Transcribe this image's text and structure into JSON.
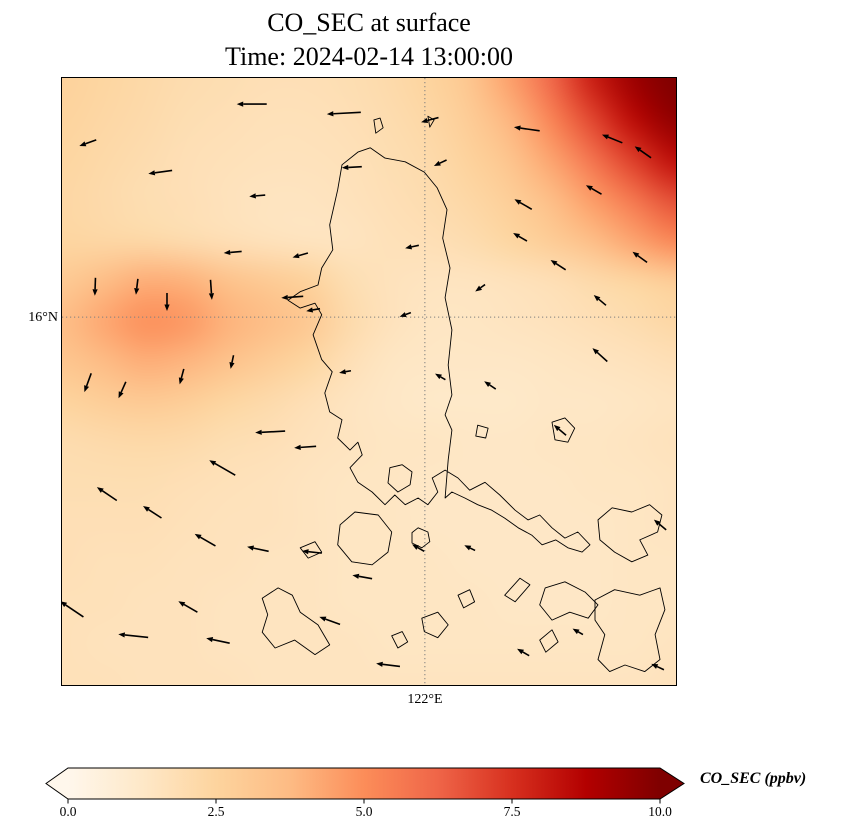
{
  "title": "CO_SEC at surface",
  "subtitle": "Time: 2024-02-14 13:00:00",
  "chart_data": {
    "type": "heatmap",
    "variable": "CO_SEC",
    "level": "surface",
    "time": "2024-02-14 13:00:00",
    "units": "ppbv",
    "title": "CO_SEC at surface",
    "subtitle": "Time: 2024-02-14 13:00:00",
    "colorbar": {
      "label": "CO_SEC (ppbv)",
      "ticks": [
        0.0,
        2.5,
        5.0,
        7.5,
        10.0
      ],
      "tick_labels": [
        "0.0",
        "2.5",
        "5.0",
        "7.5",
        "10.0"
      ],
      "range": [
        0,
        10
      ],
      "extend": "both",
      "colormap": [
        "#fff7ec",
        "#fee8c8",
        "#fdd49e",
        "#fdbb84",
        "#fc8d59",
        "#ef6548",
        "#d7301f",
        "#b30000",
        "#7f0000"
      ]
    },
    "gridlines": {
      "lat_label": "16°N",
      "lon_label": "122°E",
      "lat_y_frac": 0.394,
      "lon_x_frac": 0.591,
      "color": "#7f7f7f"
    },
    "heat_grid": {
      "nx": 16,
      "ny": 16,
      "vmin": 0,
      "vmax": 10,
      "values": [
        [
          2.6,
          2.4,
          2.2,
          2.0,
          1.9,
          1.8,
          1.8,
          1.9,
          2.1,
          2.5,
          3.2,
          4.5,
          6.2,
          8.0,
          9.3,
          10.0
        ],
        [
          2.5,
          2.3,
          2.1,
          1.9,
          1.8,
          1.7,
          1.7,
          1.8,
          2.0,
          2.3,
          2.9,
          3.9,
          5.3,
          7.0,
          8.5,
          9.6
        ],
        [
          2.4,
          2.2,
          2.0,
          1.8,
          1.7,
          1.6,
          1.6,
          1.7,
          1.9,
          2.1,
          2.6,
          3.3,
          4.4,
          5.8,
          7.2,
          8.4
        ],
        [
          2.3,
          2.1,
          1.9,
          1.8,
          1.6,
          1.5,
          1.5,
          1.6,
          1.8,
          2.0,
          2.3,
          2.8,
          3.6,
          4.6,
          5.7,
          6.8
        ],
        [
          2.4,
          2.3,
          2.2,
          2.0,
          1.8,
          1.6,
          1.5,
          1.5,
          1.7,
          1.8,
          2.0,
          2.4,
          2.9,
          3.6,
          4.4,
          5.2
        ],
        [
          3.0,
          3.6,
          4.1,
          4.0,
          3.4,
          3.0,
          2.6,
          1.9,
          1.6,
          1.5,
          1.5,
          1.6,
          1.8,
          2.1,
          2.4,
          2.8
        ],
        [
          3.6,
          4.3,
          4.9,
          4.7,
          4.0,
          3.6,
          3.1,
          2.1,
          1.6,
          1.4,
          1.4,
          1.5,
          1.6,
          1.8,
          2.0,
          2.3
        ],
        [
          3.2,
          3.7,
          4.1,
          3.9,
          3.4,
          2.9,
          2.4,
          1.8,
          1.4,
          1.3,
          1.3,
          1.3,
          1.4,
          1.5,
          1.6,
          1.8
        ],
        [
          2.5,
          2.8,
          3.0,
          2.8,
          2.4,
          2.1,
          1.8,
          1.5,
          1.3,
          1.2,
          1.2,
          1.2,
          1.3,
          1.3,
          1.4,
          1.5
        ],
        [
          2.0,
          2.1,
          2.2,
          2.1,
          1.9,
          1.8,
          1.6,
          1.5,
          1.4,
          1.4,
          1.3,
          1.3,
          1.4,
          1.4,
          1.5,
          1.6
        ],
        [
          1.9,
          1.9,
          1.9,
          1.8,
          1.7,
          1.6,
          1.5,
          1.4,
          1.4,
          1.3,
          1.3,
          1.3,
          1.3,
          1.4,
          1.4,
          1.5
        ],
        [
          1.8,
          1.8,
          1.8,
          1.7,
          1.6,
          1.6,
          1.5,
          1.4,
          1.4,
          1.3,
          1.3,
          1.3,
          1.3,
          1.3,
          1.4,
          1.5
        ],
        [
          1.8,
          1.7,
          1.7,
          1.6,
          1.6,
          1.5,
          1.5,
          1.4,
          1.4,
          1.4,
          1.3,
          1.3,
          1.3,
          1.3,
          1.4,
          1.4
        ],
        [
          1.7,
          1.7,
          1.6,
          1.6,
          1.5,
          1.5,
          1.5,
          1.4,
          1.4,
          1.4,
          1.4,
          1.3,
          1.3,
          1.3,
          1.4,
          1.4
        ],
        [
          1.7,
          1.6,
          1.6,
          1.6,
          1.5,
          1.5,
          1.5,
          1.5,
          1.4,
          1.4,
          1.4,
          1.4,
          1.4,
          1.4,
          1.4,
          1.5
        ],
        [
          1.7,
          1.7,
          1.6,
          1.6,
          1.6,
          1.5,
          1.5,
          1.5,
          1.5,
          1.5,
          1.5,
          1.5,
          1.5,
          1.5,
          1.5,
          1.6
        ]
      ]
    },
    "quiver": [
      [
        0.309,
        0.043,
        180,
        30
      ],
      [
        0.459,
        0.058,
        183,
        34
      ],
      [
        0.599,
        0.069,
        195,
        18
      ],
      [
        0.757,
        0.084,
        172,
        26
      ],
      [
        0.896,
        0.1,
        158,
        22
      ],
      [
        0.042,
        0.107,
        200,
        18
      ],
      [
        0.16,
        0.155,
        188,
        24
      ],
      [
        0.318,
        0.194,
        185,
        16
      ],
      [
        0.472,
        0.147,
        183,
        20
      ],
      [
        0.616,
        0.14,
        205,
        14
      ],
      [
        0.751,
        0.208,
        150,
        20
      ],
      [
        0.866,
        0.184,
        150,
        18
      ],
      [
        0.946,
        0.122,
        145,
        20
      ],
      [
        0.57,
        0.278,
        192,
        14
      ],
      [
        0.388,
        0.292,
        196,
        16
      ],
      [
        0.278,
        0.287,
        185,
        18
      ],
      [
        0.054,
        0.344,
        268,
        18
      ],
      [
        0.122,
        0.344,
        263,
        16
      ],
      [
        0.171,
        0.369,
        270,
        18
      ],
      [
        0.243,
        0.349,
        274,
        20
      ],
      [
        0.375,
        0.361,
        184,
        22
      ],
      [
        0.409,
        0.382,
        190,
        14
      ],
      [
        0.559,
        0.39,
        200,
        12
      ],
      [
        0.681,
        0.346,
        215,
        12
      ],
      [
        0.746,
        0.262,
        150,
        16
      ],
      [
        0.808,
        0.308,
        147,
        18
      ],
      [
        0.876,
        0.366,
        140,
        16
      ],
      [
        0.941,
        0.295,
        144,
        18
      ],
      [
        0.876,
        0.456,
        138,
        20
      ],
      [
        0.042,
        0.502,
        250,
        20
      ],
      [
        0.098,
        0.514,
        246,
        18
      ],
      [
        0.195,
        0.492,
        255,
        16
      ],
      [
        0.277,
        0.468,
        258,
        14
      ],
      [
        0.461,
        0.484,
        190,
        12
      ],
      [
        0.616,
        0.492,
        150,
        12
      ],
      [
        0.697,
        0.506,
        146,
        14
      ],
      [
        0.811,
        0.58,
        140,
        16
      ],
      [
        0.339,
        0.583,
        183,
        30
      ],
      [
        0.396,
        0.608,
        184,
        22
      ],
      [
        0.261,
        0.642,
        150,
        30
      ],
      [
        0.073,
        0.685,
        146,
        24
      ],
      [
        0.147,
        0.715,
        147,
        22
      ],
      [
        0.233,
        0.761,
        150,
        24
      ],
      [
        0.319,
        0.776,
        168,
        22
      ],
      [
        0.407,
        0.781,
        174,
        20
      ],
      [
        0.489,
        0.822,
        170,
        20
      ],
      [
        0.58,
        0.774,
        150,
        14
      ],
      [
        0.664,
        0.774,
        154,
        12
      ],
      [
        0.016,
        0.875,
        146,
        28
      ],
      [
        0.116,
        0.919,
        174,
        30
      ],
      [
        0.205,
        0.871,
        150,
        22
      ],
      [
        0.254,
        0.927,
        168,
        24
      ],
      [
        0.436,
        0.894,
        160,
        22
      ],
      [
        0.531,
        0.967,
        173,
        24
      ],
      [
        0.751,
        0.946,
        150,
        14
      ],
      [
        0.84,
        0.912,
        150,
        12
      ],
      [
        0.974,
        0.736,
        140,
        16
      ],
      [
        0.97,
        0.97,
        155,
        14
      ]
    ],
    "coastlines": [
      [
        [
          0.482,
          0.122
        ],
        [
          0.456,
          0.143
        ],
        [
          0.449,
          0.184
        ],
        [
          0.436,
          0.242
        ],
        [
          0.441,
          0.283
        ],
        [
          0.423,
          0.313
        ],
        [
          0.417,
          0.341
        ],
        [
          0.388,
          0.352
        ],
        [
          0.368,
          0.366
        ],
        [
          0.388,
          0.379
        ],
        [
          0.412,
          0.371
        ],
        [
          0.423,
          0.39
        ],
        [
          0.409,
          0.423
        ],
        [
          0.423,
          0.464
        ],
        [
          0.44,
          0.484
        ],
        [
          0.428,
          0.519
        ],
        [
          0.436,
          0.55
        ],
        [
          0.456,
          0.563
        ],
        [
          0.449,
          0.593
        ],
        [
          0.469,
          0.613
        ],
        [
          0.482,
          0.6
        ],
        [
          0.489,
          0.621
        ],
        [
          0.469,
          0.642
        ],
        [
          0.482,
          0.666
        ],
        [
          0.505,
          0.682
        ],
        [
          0.526,
          0.703
        ],
        [
          0.542,
          0.687
        ],
        [
          0.559,
          0.703
        ],
        [
          0.58,
          0.692
        ],
        [
          0.596,
          0.703
        ],
        [
          0.612,
          0.682
        ],
        [
          0.603,
          0.659
        ],
        [
          0.624,
          0.646
        ],
        [
          0.645,
          0.659
        ],
        [
          0.664,
          0.679
        ],
        [
          0.689,
          0.666
        ],
        [
          0.713,
          0.687
        ],
        [
          0.738,
          0.712
        ],
        [
          0.759,
          0.728
        ],
        [
          0.778,
          0.72
        ],
        [
          0.798,
          0.741
        ],
        [
          0.819,
          0.758
        ],
        [
          0.84,
          0.748
        ],
        [
          0.86,
          0.769
        ],
        [
          0.847,
          0.781
        ],
        [
          0.824,
          0.774
        ],
        [
          0.804,
          0.761
        ],
        [
          0.782,
          0.769
        ],
        [
          0.765,
          0.753
        ],
        [
          0.743,
          0.741
        ],
        [
          0.721,
          0.725
        ],
        [
          0.7,
          0.712
        ],
        [
          0.677,
          0.703
        ],
        [
          0.656,
          0.692
        ],
        [
          0.635,
          0.682
        ],
        [
          0.624,
          0.692
        ],
        [
          0.629,
          0.629
        ],
        [
          0.635,
          0.58
        ],
        [
          0.624,
          0.555
        ],
        [
          0.635,
          0.522
        ],
        [
          0.629,
          0.473
        ],
        [
          0.635,
          0.415
        ],
        [
          0.624,
          0.362
        ],
        [
          0.632,
          0.313
        ],
        [
          0.62,
          0.264
        ],
        [
          0.627,
          0.217
        ],
        [
          0.611,
          0.181
        ],
        [
          0.59,
          0.155
        ],
        [
          0.559,
          0.138
        ],
        [
          0.526,
          0.132
        ],
        [
          0.502,
          0.115
        ]
      ],
      [
        [
          0.534,
          0.642
        ],
        [
          0.554,
          0.637
        ],
        [
          0.57,
          0.649
        ],
        [
          0.567,
          0.67
        ],
        [
          0.547,
          0.682
        ],
        [
          0.531,
          0.667
        ]
      ],
      [
        [
          0.477,
          0.715
        ],
        [
          0.453,
          0.736
        ],
        [
          0.449,
          0.769
        ],
        [
          0.472,
          0.797
        ],
        [
          0.505,
          0.802
        ],
        [
          0.531,
          0.781
        ],
        [
          0.537,
          0.748
        ],
        [
          0.515,
          0.72
        ]
      ],
      [
        [
          0.58,
          0.741
        ],
        [
          0.596,
          0.748
        ],
        [
          0.599,
          0.764
        ],
        [
          0.586,
          0.774
        ],
        [
          0.57,
          0.766
        ],
        [
          0.57,
          0.749
        ]
      ],
      [
        [
          0.677,
          0.572
        ],
        [
          0.694,
          0.577
        ],
        [
          0.69,
          0.593
        ],
        [
          0.674,
          0.59
        ]
      ],
      [
        [
          0.798,
          0.567
        ],
        [
          0.819,
          0.56
        ],
        [
          0.835,
          0.577
        ],
        [
          0.824,
          0.6
        ],
        [
          0.803,
          0.596
        ]
      ],
      [
        [
          0.873,
          0.728
        ],
        [
          0.896,
          0.708
        ],
        [
          0.928,
          0.715
        ],
        [
          0.957,
          0.703
        ],
        [
          0.977,
          0.72
        ],
        [
          0.97,
          0.748
        ],
        [
          0.941,
          0.761
        ],
        [
          0.954,
          0.786
        ],
        [
          0.928,
          0.797
        ],
        [
          0.9,
          0.781
        ],
        [
          0.876,
          0.761
        ]
      ],
      [
        [
          0.868,
          0.86
        ],
        [
          0.9,
          0.843
        ],
        [
          0.941,
          0.852
        ],
        [
          0.974,
          0.84
        ],
        [
          0.982,
          0.876
        ],
        [
          0.966,
          0.917
        ],
        [
          0.974,
          0.958
        ],
        [
          0.949,
          0.978
        ],
        [
          0.917,
          0.967
        ],
        [
          0.892,
          0.978
        ],
        [
          0.873,
          0.958
        ],
        [
          0.884,
          0.917
        ],
        [
          0.868,
          0.893
        ]
      ],
      [
        [
          0.787,
          0.84
        ],
        [
          0.819,
          0.83
        ],
        [
          0.852,
          0.847
        ],
        [
          0.873,
          0.868
        ],
        [
          0.857,
          0.89
        ],
        [
          0.827,
          0.88
        ],
        [
          0.798,
          0.893
        ],
        [
          0.778,
          0.868
        ]
      ],
      [
        [
          0.721,
          0.852
        ],
        [
          0.746,
          0.824
        ],
        [
          0.762,
          0.835
        ],
        [
          0.738,
          0.863
        ]
      ],
      [
        [
          0.778,
          0.926
        ],
        [
          0.798,
          0.909
        ],
        [
          0.808,
          0.929
        ],
        [
          0.788,
          0.946
        ]
      ],
      [
        [
          0.326,
          0.857
        ],
        [
          0.352,
          0.84
        ],
        [
          0.375,
          0.852
        ],
        [
          0.388,
          0.88
        ],
        [
          0.417,
          0.901
        ],
        [
          0.436,
          0.934
        ],
        [
          0.412,
          0.95
        ],
        [
          0.379,
          0.926
        ],
        [
          0.347,
          0.939
        ],
        [
          0.326,
          0.913
        ],
        [
          0.335,
          0.884
        ]
      ],
      [
        [
          0.586,
          0.89
        ],
        [
          0.612,
          0.88
        ],
        [
          0.629,
          0.901
        ],
        [
          0.612,
          0.922
        ],
        [
          0.59,
          0.912
        ]
      ],
      [
        [
          0.537,
          0.919
        ],
        [
          0.554,
          0.912
        ],
        [
          0.563,
          0.929
        ],
        [
          0.547,
          0.939
        ]
      ],
      [
        [
          0.645,
          0.852
        ],
        [
          0.664,
          0.843
        ],
        [
          0.672,
          0.863
        ],
        [
          0.654,
          0.873
        ]
      ],
      [
        [
          0.388,
          0.774
        ],
        [
          0.412,
          0.764
        ],
        [
          0.423,
          0.781
        ],
        [
          0.401,
          0.791
        ]
      ],
      [
        [
          0.508,
          0.069
        ],
        [
          0.518,
          0.066
        ],
        [
          0.523,
          0.082
        ],
        [
          0.511,
          0.091
        ]
      ],
      [
        [
          0.596,
          0.063
        ],
        [
          0.606,
          0.069
        ],
        [
          0.599,
          0.081
        ]
      ]
    ]
  }
}
